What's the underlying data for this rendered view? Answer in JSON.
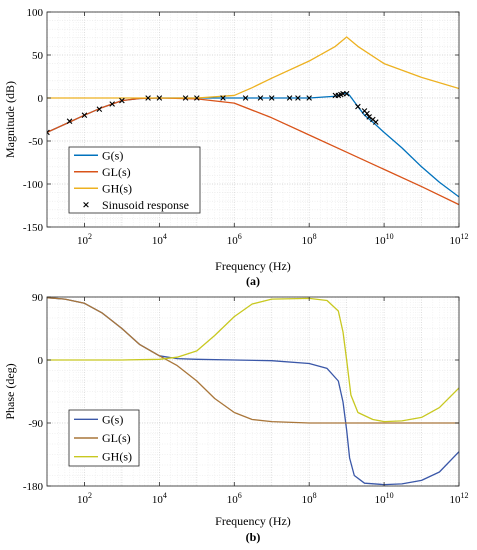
{
  "chart_data": [
    {
      "type": "line",
      "title": "",
      "xlabel": "Frequency  (Hz)",
      "ylabel": "Magnitude (dB)",
      "caption": "(a)",
      "xscale": "log",
      "xlim": [
        10,
        1000000000000
      ],
      "ylim": [
        -150,
        100
      ],
      "yticks": [
        100,
        50,
        0,
        -50,
        -100,
        -150
      ],
      "xticks": [
        {
          "value": 100,
          "label_base": "10",
          "label_exp": "2"
        },
        {
          "value": 10000,
          "label_base": "10",
          "label_exp": "4"
        },
        {
          "value": 1000000,
          "label_base": "10",
          "label_exp": "6"
        },
        {
          "value": 100000000,
          "label_base": "10",
          "label_exp": "8"
        },
        {
          "value": 10000000000,
          "label_base": "10",
          "label_exp": "10"
        },
        {
          "value": 1000000000000,
          "label_base": "10",
          "label_exp": "12"
        }
      ],
      "grid": true,
      "legend_position": "bottom-left",
      "series": [
        {
          "name": "G(s)",
          "color": "#0072BD",
          "x": [
            10,
            30,
            100,
            300,
            1000,
            3000,
            10000,
            100000,
            1000000,
            10000000,
            100000000,
            500000000,
            800000000,
            1000000000,
            1200000000,
            2000000000,
            3000000000,
            5000000000,
            10000000000,
            30000000000,
            100000000000,
            300000000000,
            1000000000000
          ],
          "y": [
            -40,
            -30.5,
            -20,
            -11,
            -3,
            -0.5,
            0,
            0,
            0,
            0,
            0,
            2,
            5,
            6,
            3,
            -10,
            -20,
            -28,
            -40,
            -58,
            -80,
            -98,
            -115
          ]
        },
        {
          "name": "GL(s)",
          "color": "#D95319",
          "x": [
            10,
            30,
            100,
            300,
            1000,
            3000,
            10000,
            100000,
            1000000,
            10000000,
            100000000,
            1000000000,
            10000000000,
            100000000000,
            1000000000000
          ],
          "y": [
            -40,
            -30.5,
            -20,
            -11,
            -3,
            -0.5,
            0,
            -1,
            -6,
            -23,
            -43,
            -63,
            -83,
            -103,
            -124
          ]
        },
        {
          "name": "GH(s)",
          "color": "#EDB120",
          "x": [
            10,
            1000,
            10000,
            100000,
            1000000,
            3000000,
            10000000,
            100000000,
            500000000,
            1000000000,
            2000000000,
            10000000000,
            100000000000,
            1000000000000
          ],
          "y": [
            0,
            0,
            0,
            0,
            3,
            12,
            23,
            43,
            60,
            71,
            60,
            40,
            24,
            11
          ]
        },
        {
          "name": "Sinusoid response",
          "color": "#000000",
          "marker": "x",
          "line": false,
          "x": [
            10,
            40,
            100,
            250,
            550,
            1000,
            5000,
            10000,
            50000,
            100000,
            500000,
            2000000,
            5000000,
            10000000,
            30000000,
            50000000,
            100000000,
            500000000,
            600000000,
            700000000,
            800000000,
            1000000000,
            2000000000,
            3000000000,
            3500000000,
            4000000000,
            5000000000,
            6000000000
          ],
          "y": [
            -40,
            -27,
            -20,
            -13,
            -7,
            -3,
            0,
            0,
            0,
            0,
            0,
            0,
            0,
            0,
            0,
            0,
            0,
            3,
            3,
            4,
            5,
            5,
            -10,
            -15,
            -18,
            -22,
            -25,
            -28
          ]
        }
      ]
    },
    {
      "type": "line",
      "title": "",
      "xlabel": "Frequency  (Hz)",
      "ylabel": "Phase (deg)",
      "caption": "(b)",
      "xscale": "log",
      "xlim": [
        10,
        1000000000000
      ],
      "ylim": [
        -180,
        90
      ],
      "yticks": [
        90,
        0,
        -90,
        -180
      ],
      "xticks": [
        {
          "value": 100,
          "label_base": "10",
          "label_exp": "2"
        },
        {
          "value": 10000,
          "label_base": "10",
          "label_exp": "4"
        },
        {
          "value": 1000000,
          "label_base": "10",
          "label_exp": "6"
        },
        {
          "value": 100000000,
          "label_base": "10",
          "label_exp": "8"
        },
        {
          "value": 10000000000,
          "label_base": "10",
          "label_exp": "10"
        },
        {
          "value": 1000000000000,
          "label_base": "10",
          "label_exp": "12"
        }
      ],
      "grid": true,
      "legend_position": "bottom-left",
      "series": [
        {
          "name": "G(s)",
          "color": "#3A57A8",
          "x": [
            10,
            30,
            100,
            300,
            1000,
            3000,
            10000,
            30000,
            100000,
            1000000,
            10000000,
            100000000,
            300000000,
            600000000,
            800000000,
            1000000000,
            1200000000,
            1600000000,
            3000000000,
            10000000000,
            30000000000,
            100000000000,
            300000000000,
            1000000000000
          ],
          "y": [
            89,
            87,
            81,
            67,
            45,
            22,
            6,
            2,
            1,
            0,
            -1,
            -5,
            -12,
            -30,
            -60,
            -100,
            -140,
            -165,
            -176,
            -178,
            -177,
            -172,
            -160,
            -131
          ]
        },
        {
          "name": "GL(s)",
          "color": "#A9763A",
          "x": [
            10,
            30,
            100,
            300,
            1000,
            3000,
            10000,
            30000,
            100000,
            300000,
            1000000,
            3000000,
            10000000,
            100000000,
            1000000000,
            1000000000000
          ],
          "y": [
            89,
            87,
            81,
            67,
            45,
            22,
            6,
            -8,
            -30,
            -55,
            -75,
            -85,
            -88,
            -90,
            -90,
            -90
          ]
        },
        {
          "name": "GH(s)",
          "color": "#C8C820",
          "x": [
            10,
            1000,
            10000,
            30000,
            100000,
            300000,
            1000000,
            3000000,
            10000000,
            100000000,
            300000000,
            600000000,
            800000000,
            1000000000,
            1300000000,
            2000000000,
            5000000000,
            10000000000,
            30000000000,
            100000000000,
            300000000000,
            1000000000000
          ],
          "y": [
            0,
            0,
            1,
            4,
            13,
            35,
            62,
            80,
            87,
            88,
            85,
            70,
            40,
            0,
            -50,
            -75,
            -85,
            -88,
            -87,
            -82,
            -68,
            -40
          ]
        }
      ]
    }
  ]
}
